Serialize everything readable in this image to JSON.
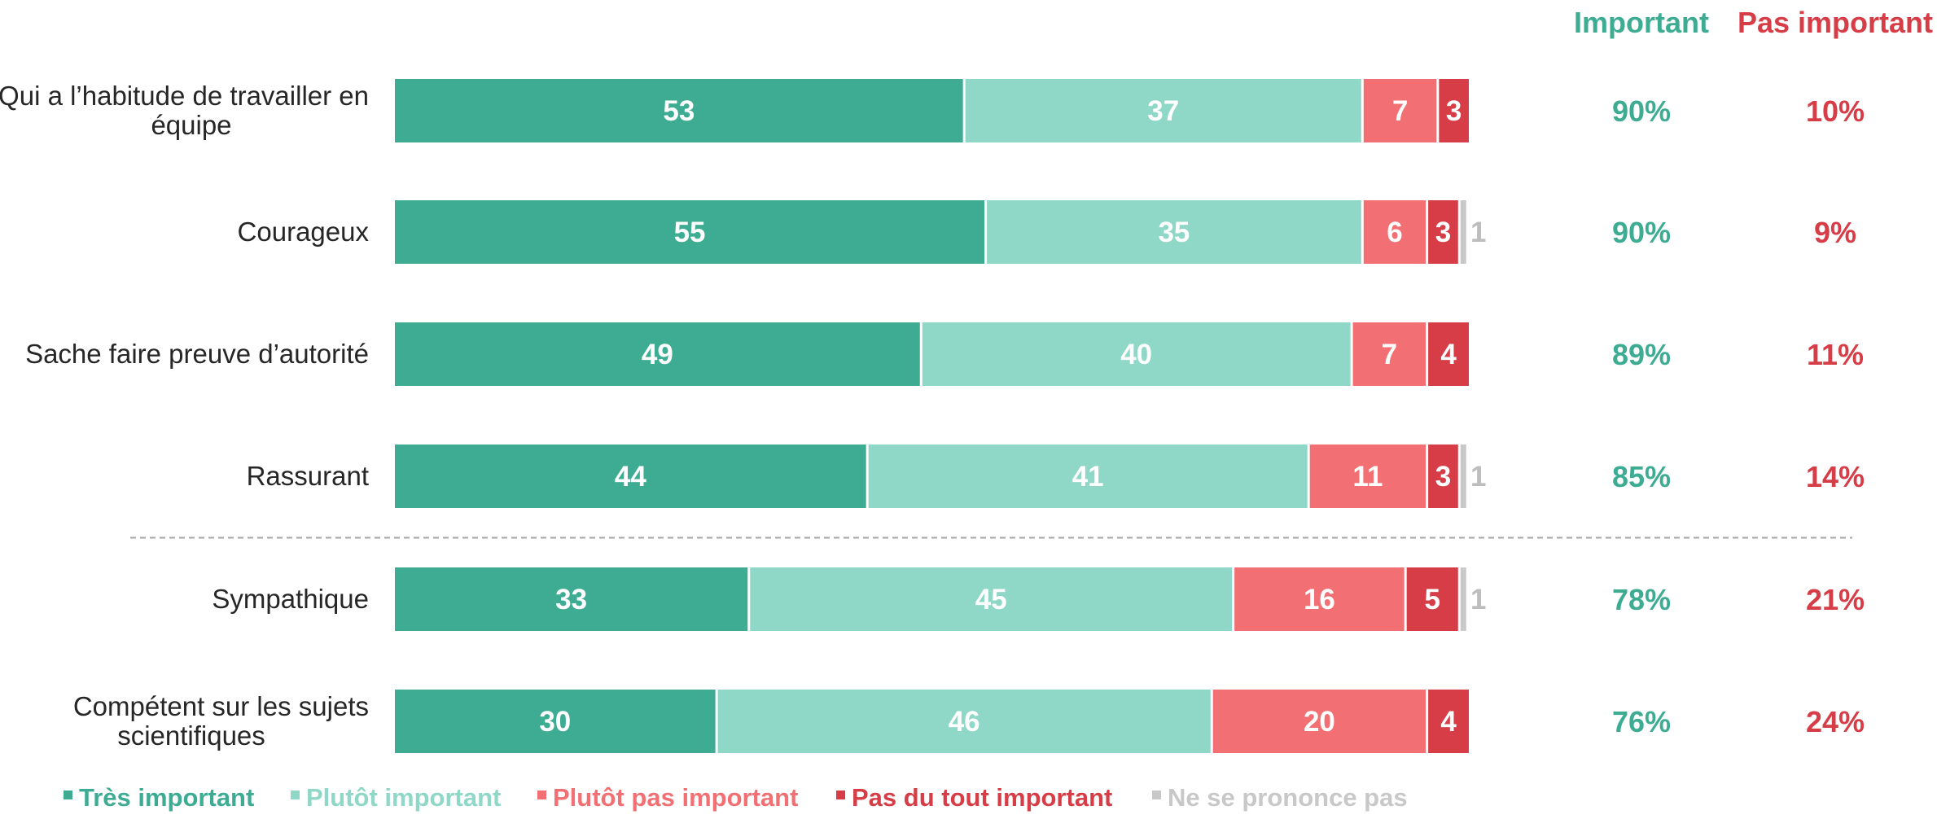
{
  "chart_data": {
    "type": "bar",
    "orientation": "horizontal",
    "stacked": true,
    "categories": [
      "Qui a l’habitude de travailler en équipe",
      "Courageux",
      "Sache faire preuve d’autorité",
      "Rassurant",
      "Sympathique",
      "Compétent sur les sujets scientifiques"
    ],
    "category_lines": [
      [
        "Qui a l’habitude de travailler en",
        "équipe"
      ],
      [
        "Courageux"
      ],
      [
        "Sache faire preuve d’autorité"
      ],
      [
        "Rassurant"
      ],
      [
        "Sympathique"
      ],
      [
        "Compétent sur les sujets",
        "scientifiques"
      ]
    ],
    "series": [
      {
        "name": "Très important",
        "color": "#3dac93",
        "values": [
          53,
          55,
          49,
          44,
          33,
          30
        ]
      },
      {
        "name": "Plutôt important",
        "color": "#8fd7c7",
        "values": [
          37,
          35,
          40,
          41,
          45,
          46
        ]
      },
      {
        "name": "Plutôt pas important",
        "color": "#f27074",
        "values": [
          7,
          6,
          7,
          11,
          16,
          20
        ]
      },
      {
        "name": "Pas du tout important",
        "color": "#d63d47",
        "values": [
          3,
          3,
          4,
          3,
          5,
          4
        ]
      },
      {
        "name": "Ne se prononce pas",
        "color": "#c8c8c8",
        "values": [
          0,
          1,
          0,
          1,
          1,
          0
        ]
      }
    ],
    "totals": {
      "important": {
        "header": "Important",
        "color": "#3dac93",
        "values": [
          "90%",
          "90%",
          "89%",
          "85%",
          "78%",
          "76%"
        ]
      },
      "pas_important": {
        "header": "Pas important",
        "color": "#d63d47",
        "values": [
          "10%",
          "9%",
          "11%",
          "14%",
          "21%",
          "24%"
        ]
      }
    },
    "separator_after_index": 3,
    "separator_style": "dashed",
    "legend_position": "bottom-left",
    "grid": false,
    "xlim": [
      0,
      100
    ]
  }
}
